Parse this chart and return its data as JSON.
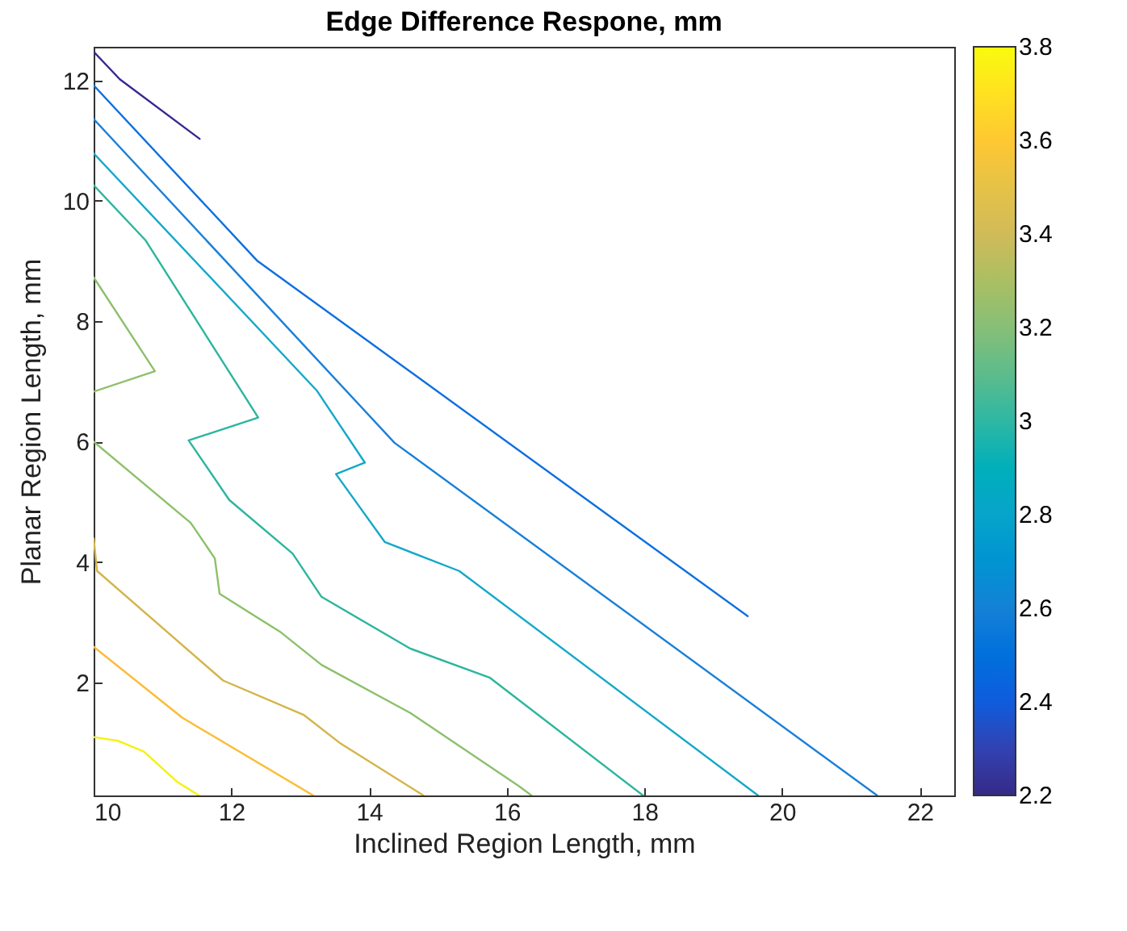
{
  "chart_data": {
    "type": "line",
    "title": "Edge Difference Respone, mm",
    "xlabel": "Inclined Region Length, mm",
    "ylabel": "Planar Region Length, mm",
    "xlim": [
      10,
      22.5
    ],
    "xticks": [
      10,
      12,
      14,
      16,
      18,
      20,
      22
    ],
    "ylim": [
      0.12,
      12.56
    ],
    "yticks": [
      2,
      4,
      6,
      8,
      10,
      12
    ],
    "grid": false,
    "legend": false,
    "clim": [
      2.2,
      3.8
    ],
    "cticks": [
      2.2,
      2.4,
      2.6,
      2.8,
      3,
      3.2,
      3.4,
      3.6,
      3.8
    ],
    "series": [
      {
        "color": "#35298f",
        "x": [
          10,
          10.38,
          11.54
        ],
        "values": [
          12.48,
          12.02,
          11.03
        ]
      },
      {
        "color": "#0d6fe0",
        "x": [
          10,
          12.38,
          19.5
        ],
        "values": [
          11.92,
          9.0,
          3.1
        ]
      },
      {
        "color": "#1a80d8",
        "x": [
          10,
          14.37,
          21.38
        ],
        "values": [
          11.36,
          5.98,
          0.12
        ]
      },
      {
        "color": "#15a8c8",
        "x": [
          10,
          13.24,
          13.94,
          13.52,
          14.23,
          15.31,
          19.65
        ],
        "values": [
          10.79,
          6.85,
          5.65,
          5.46,
          4.33,
          3.85,
          0.12
        ]
      },
      {
        "color": "#2cb59e",
        "x": [
          10,
          10.75,
          12.39,
          11.38,
          11.97,
          12.89,
          13.31,
          14.6,
          15.75,
          17.98
        ],
        "values": [
          10.26,
          9.35,
          6.4,
          6.02,
          5.03,
          4.14,
          3.42,
          2.56,
          2.08,
          0.12
        ]
      },
      {
        "color": "#8cc06a",
        "x": [
          10,
          10.89,
          10
        ],
        "values": [
          8.73,
          7.17,
          6.83
        ]
      },
      {
        "color": "#8cc06a",
        "x": [
          10,
          11.41,
          11.76,
          11.83,
          12.72,
          13.31,
          14.6,
          16.17,
          16.36
        ],
        "values": [
          6.0,
          4.65,
          4.06,
          3.47,
          2.83,
          2.29,
          1.49,
          0.28,
          0.12
        ]
      },
      {
        "color": "#d4b44a",
        "x": [
          10,
          10.05,
          11.88,
          13.05,
          13.59,
          14.79
        ],
        "values": [
          4.39,
          3.85,
          2.03,
          1.46,
          0.98,
          0.12
        ]
      },
      {
        "color": "#fcbb35",
        "x": [
          10,
          11.29,
          13.19
        ],
        "values": [
          2.59,
          1.41,
          0.12
        ]
      },
      {
        "color": "#f5f10f",
        "x": [
          10,
          10.35,
          10.73,
          11.22,
          11.53
        ],
        "values": [
          1.09,
          1.03,
          0.85,
          0.34,
          0.12
        ]
      }
    ]
  }
}
